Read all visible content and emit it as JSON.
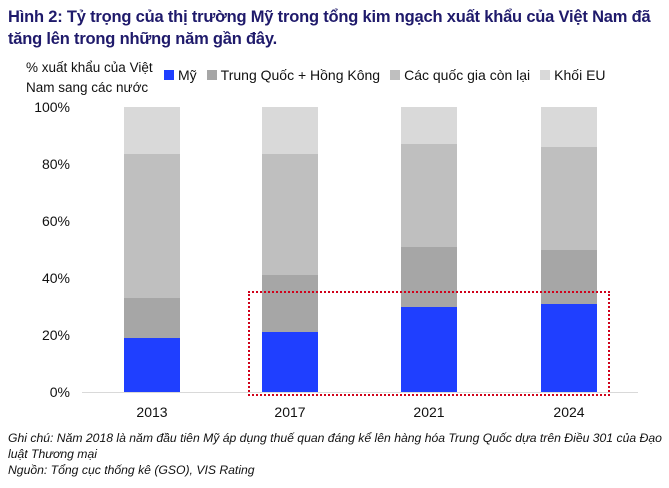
{
  "title": "Hình 2: Tỷ trọng của thị trường Mỹ trong tổng kim ngạch xuất khẩu của Việt Nam đã tăng lên trong những năm gần đây.",
  "unit_label": "% xuất khẩu của Việt Nam sang các nước",
  "legend": [
    {
      "label": "Mỹ",
      "color": "#1f3fff"
    },
    {
      "label": "Trung Quốc + Hồng Kông",
      "color": "#a6a6a6"
    },
    {
      "label": "Các quốc gia còn lại",
      "color": "#bfbfbf"
    },
    {
      "label": "Khối EU",
      "color": "#d9d9d9"
    }
  ],
  "y_ticks": [
    "0%",
    "20%",
    "40%",
    "60%",
    "80%",
    "100%"
  ],
  "notes": {
    "line1": "Ghi chú: Năm 2018 là năm đầu tiên Mỹ áp dụng thuế quan đáng kể lên hàng hóa Trung Quốc dựa trên Điều 301 của Đạo luật Thương mại",
    "line2": "Nguồn: Tổng cục thống kê (GSO), VIS Rating"
  },
  "chart_data": {
    "type": "bar",
    "stacked": true,
    "title": "Hình 2: Tỷ trọng của thị trường Mỹ trong tổng kim ngạch xuất khẩu của Việt Nam đã tăng lên trong những năm gần đây.",
    "xlabel": "",
    "ylabel": "% xuất khẩu của Việt Nam sang các nước",
    "ylim": [
      0,
      100
    ],
    "y_ticks": [
      0,
      20,
      40,
      60,
      80,
      100
    ],
    "categories": [
      "2013",
      "2017",
      "2021",
      "2024"
    ],
    "series": [
      {
        "name": "Mỹ",
        "color": "#1f3fff",
        "values": [
          19,
          21,
          30,
          31
        ]
      },
      {
        "name": "Trung Quốc + Hồng Kông",
        "color": "#a6a6a6",
        "values": [
          14,
          20,
          21,
          19
        ]
      },
      {
        "name": "Các quốc gia còn lại",
        "color": "#bfbfbf",
        "values": [
          50.5,
          42.5,
          36,
          36
        ]
      },
      {
        "name": "Khối EU",
        "color": "#d9d9d9",
        "values": [
          16.5,
          16.5,
          13,
          14
        ]
      }
    ],
    "legend_position": "top",
    "grid": false,
    "annotations": [
      "Red dotted box highlighting the Mỹ segment of 2017, 2021, 2024 bars"
    ]
  }
}
